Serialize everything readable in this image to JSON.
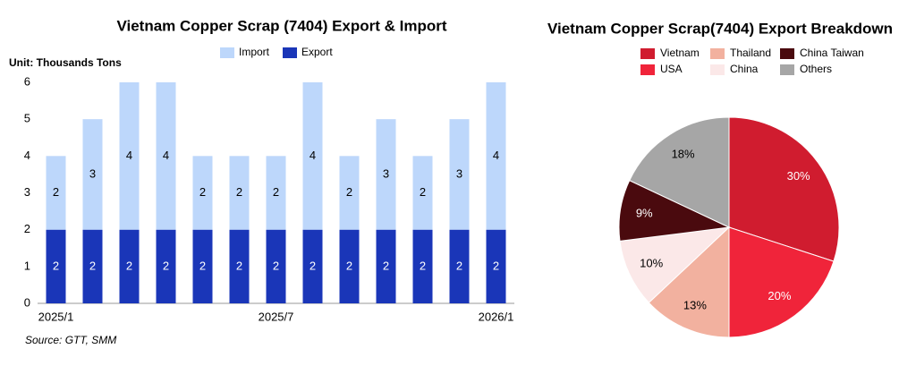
{
  "chart_data": [
    {
      "type": "bar",
      "stacked": true,
      "title": "Vietnam Copper Scrap (7404) Export & Import",
      "unit": "Unit: Thousands Tons",
      "source": "Source: GTT, SMM",
      "categories": [
        "2025/1",
        null,
        null,
        null,
        null,
        null,
        "2025/7",
        null,
        null,
        null,
        null,
        null,
        "2026/1"
      ],
      "series": [
        {
          "name": "Export",
          "color": "#1a36b8",
          "values": [
            2,
            2,
            2,
            2,
            2,
            2,
            2,
            2,
            2,
            2,
            2,
            2,
            2
          ]
        },
        {
          "name": "Import",
          "color": "#bdd7fb",
          "values": [
            2,
            3,
            4,
            4,
            2,
            2,
            2,
            4,
            2,
            3,
            2,
            3,
            4
          ]
        }
      ],
      "ylim": [
        0,
        6
      ],
      "yticks": [
        0,
        1,
        2,
        3,
        4,
        5,
        6
      ],
      "grid": false
    },
    {
      "type": "pie",
      "title": "Vietnam Copper Scrap(7404) Export Breakdown",
      "categories": [
        "Vietnam",
        "USA",
        "Thailand",
        "China",
        "China Taiwan",
        "Others"
      ],
      "values": [
        30,
        20,
        13,
        10,
        9,
        18
      ],
      "value_labels": [
        "30%",
        "20%",
        "13%",
        "10%",
        "9%",
        "18%"
      ],
      "colors": [
        "#d01c2f",
        "#f0243a",
        "#f2b19f",
        "#fbe8e8",
        "#4a0a0e",
        "#a6a6a6"
      ],
      "legend_order": [
        0,
        2,
        4,
        1,
        3,
        5
      ]
    }
  ]
}
